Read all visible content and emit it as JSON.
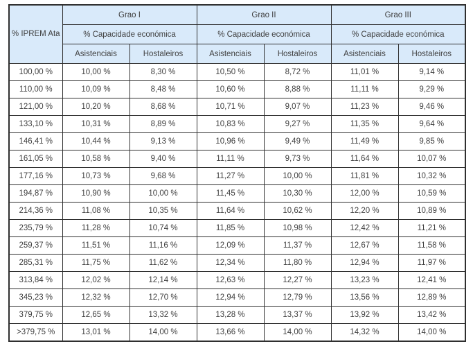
{
  "table": {
    "corner_header": "% IPREM Ata",
    "groups": [
      {
        "label": "Grao I"
      },
      {
        "label": "Grao II"
      },
      {
        "label": "Grao III"
      }
    ],
    "subheader": "% Capacidade económica",
    "columns": [
      "Asistenciais",
      "Hostaleiros"
    ],
    "colors": {
      "header_bg": "#d9eafa",
      "border": "#2f2f2f",
      "text": "#404040"
    },
    "rows": [
      [
        "100,00 %",
        "10,00 %",
        "8,30 %",
        "10,50 %",
        "8,72 %",
        "11,01 %",
        "9,14 %"
      ],
      [
        "110,00 %",
        "10,09 %",
        "8,48 %",
        "10,60 %",
        "8,88 %",
        "11,11 %",
        "9,29 %"
      ],
      [
        "121,00 %",
        "10,20 %",
        "8,68 %",
        "10,71 %",
        "9,07 %",
        "11,23 %",
        "9,46 %"
      ],
      [
        "133,10 %",
        "10,31 %",
        "8,89 %",
        "10,83 %",
        "9,27 %",
        "11,35 %",
        "9,64 %"
      ],
      [
        "146,41 %",
        "10,44 %",
        "9,13 %",
        "10,96 %",
        "9,49 %",
        "11,49 %",
        "9,85 %"
      ],
      [
        "161,05 %",
        "10,58 %",
        "9,40 %",
        "11,11 %",
        "9,73 %",
        "11,64 %",
        "10,07 %"
      ],
      [
        "177,16 %",
        "10,73 %",
        "9,68 %",
        "11,27 %",
        "10,00 %",
        "11,81 %",
        "10,32 %"
      ],
      [
        "194,87 %",
        "10,90 %",
        "10,00 %",
        "11,45 %",
        "10,30 %",
        "12,00 %",
        "10,59 %"
      ],
      [
        "214,36 %",
        "11,08 %",
        "10,35 %",
        "11,64 %",
        "10,62 %",
        "12,20 %",
        "10,89 %"
      ],
      [
        "235,79 %",
        "11,28 %",
        "10,74 %",
        "11,85 %",
        "10,98 %",
        "12,42 %",
        "11,21 %"
      ],
      [
        "259,37 %",
        "11,51 %",
        "11,16 %",
        "12,09 %",
        "11,37 %",
        "12,67 %",
        "11,58 %"
      ],
      [
        "285,31 %",
        "11,75 %",
        "11,62 %",
        "12,34 %",
        "11,80 %",
        "12,94 %",
        "11,97 %"
      ],
      [
        "313,84 %",
        "12,02 %",
        "12,14 %",
        "12,63 %",
        "12,27 %",
        "13,23 %",
        "12,41 %"
      ],
      [
        "345,23 %",
        "12,32 %",
        "12,70 %",
        "12,94 %",
        "12,79 %",
        "13,56 %",
        "12,89 %"
      ],
      [
        "379,75 %",
        "12,65 %",
        "13,32 %",
        "13,28 %",
        "13,37 %",
        "13,92 %",
        "13,42 %"
      ],
      [
        ">379,75 %",
        "13,01 %",
        "14,00 %",
        "13,66 %",
        "14,00 %",
        "14,32 %",
        "14,00 %"
      ]
    ]
  }
}
